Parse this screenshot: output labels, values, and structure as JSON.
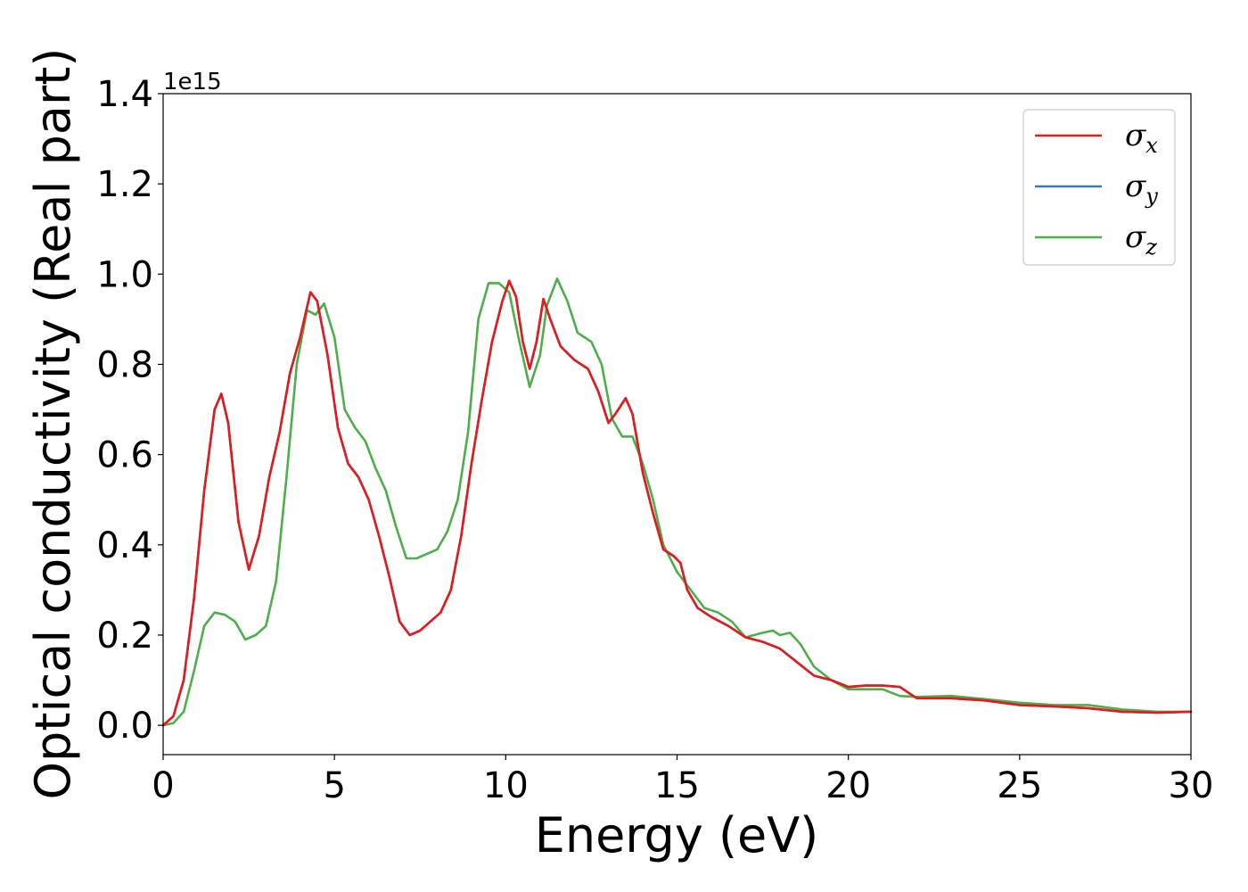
{
  "chart_data": {
    "type": "line",
    "title": "",
    "xlabel": "Energy (eV)",
    "ylabel": "Optical conductivity (Real part)",
    "y_offset_label": "1e15",
    "xlim": [
      0,
      30
    ],
    "ylim": [
      -0.065,
      1.4
    ],
    "x_ticks": [
      0,
      5,
      10,
      15,
      20,
      25,
      30
    ],
    "x_tick_labels": [
      "0",
      "5",
      "10",
      "15",
      "20",
      "25",
      "30"
    ],
    "y_ticks": [
      0.0,
      0.2,
      0.4,
      0.6,
      0.8,
      1.0,
      1.2,
      1.4
    ],
    "y_tick_labels": [
      "0.0",
      "0.2",
      "0.4",
      "0.6",
      "0.8",
      "1.0",
      "1.2",
      "1.4"
    ],
    "grid": false,
    "legend_position": "top-right",
    "series": [
      {
        "name": "σx",
        "sym": "σ",
        "sub": "x",
        "color": "#e41a1c",
        "x": [
          0,
          0.3,
          0.6,
          0.9,
          1.2,
          1.5,
          1.7,
          1.9,
          2.2,
          2.5,
          2.8,
          3.1,
          3.4,
          3.7,
          4.0,
          4.3,
          4.5,
          4.8,
          5.1,
          5.4,
          5.7,
          6.0,
          6.3,
          6.6,
          6.9,
          7.2,
          7.5,
          7.8,
          8.1,
          8.4,
          8.7,
          9.0,
          9.3,
          9.6,
          9.9,
          10.1,
          10.3,
          10.5,
          10.7,
          10.9,
          11.1,
          11.3,
          11.6,
          12.0,
          12.4,
          12.7,
          13.0,
          13.2,
          13.5,
          13.7,
          14.0,
          14.3,
          14.6,
          14.9,
          15.1,
          15.3,
          15.6,
          16.0,
          16.5,
          17.0,
          17.5,
          18.0,
          18.5,
          19.0,
          19.5,
          20.0,
          20.5,
          21.0,
          21.5,
          22.0,
          23.0,
          24.0,
          25.0,
          26.0,
          27.0,
          28.0,
          29.0,
          30.0
        ],
        "values": [
          0.0,
          0.02,
          0.1,
          0.28,
          0.52,
          0.7,
          0.735,
          0.67,
          0.45,
          0.345,
          0.42,
          0.55,
          0.65,
          0.78,
          0.86,
          0.96,
          0.94,
          0.82,
          0.66,
          0.58,
          0.55,
          0.5,
          0.42,
          0.33,
          0.23,
          0.2,
          0.21,
          0.23,
          0.25,
          0.3,
          0.42,
          0.58,
          0.72,
          0.85,
          0.94,
          0.985,
          0.95,
          0.85,
          0.79,
          0.85,
          0.945,
          0.9,
          0.84,
          0.81,
          0.79,
          0.74,
          0.67,
          0.69,
          0.725,
          0.69,
          0.56,
          0.47,
          0.39,
          0.375,
          0.36,
          0.3,
          0.26,
          0.24,
          0.22,
          0.195,
          0.185,
          0.17,
          0.14,
          0.11,
          0.1,
          0.085,
          0.088,
          0.088,
          0.085,
          0.06,
          0.06,
          0.055,
          0.045,
          0.042,
          0.038,
          0.03,
          0.028,
          0.03
        ]
      },
      {
        "name": "σy",
        "sym": "σ",
        "sub": "y",
        "color": "#377eb8",
        "x": [
          0,
          0.3,
          0.6,
          0.9,
          1.2,
          1.5,
          1.7,
          1.9,
          2.2,
          2.5,
          2.8,
          3.1,
          3.4,
          3.7,
          4.0,
          4.3,
          4.5,
          4.8,
          5.1,
          5.4,
          5.7,
          6.0,
          6.3,
          6.6,
          6.9,
          7.2,
          7.5,
          7.8,
          8.1,
          8.4,
          8.7,
          9.0,
          9.3,
          9.6,
          9.9,
          10.1,
          10.3,
          10.5,
          10.7,
          10.9,
          11.1,
          11.3,
          11.6,
          12.0,
          12.4,
          12.7,
          13.0,
          13.2,
          13.5,
          13.7,
          14.0,
          14.3,
          14.6,
          14.9,
          15.1,
          15.3,
          15.6,
          16.0,
          16.5,
          17.0,
          17.5,
          18.0,
          18.5,
          19.0,
          19.5,
          20.0,
          20.5,
          21.0,
          21.5,
          22.0,
          23.0,
          24.0,
          25.0,
          26.0,
          27.0,
          28.0,
          29.0,
          30.0
        ],
        "values": [
          0.0,
          0.02,
          0.1,
          0.28,
          0.52,
          0.7,
          0.735,
          0.67,
          0.45,
          0.345,
          0.42,
          0.55,
          0.65,
          0.78,
          0.86,
          0.96,
          0.94,
          0.82,
          0.66,
          0.58,
          0.55,
          0.5,
          0.42,
          0.33,
          0.23,
          0.2,
          0.21,
          0.23,
          0.25,
          0.3,
          0.42,
          0.58,
          0.72,
          0.85,
          0.94,
          0.985,
          0.95,
          0.85,
          0.79,
          0.85,
          0.945,
          0.9,
          0.84,
          0.81,
          0.79,
          0.74,
          0.67,
          0.69,
          0.725,
          0.69,
          0.56,
          0.47,
          0.39,
          0.375,
          0.36,
          0.3,
          0.26,
          0.24,
          0.22,
          0.195,
          0.185,
          0.17,
          0.14,
          0.11,
          0.1,
          0.085,
          0.088,
          0.088,
          0.085,
          0.06,
          0.06,
          0.055,
          0.045,
          0.042,
          0.038,
          0.03,
          0.028,
          0.03
        ]
      },
      {
        "name": "σz",
        "sym": "σ",
        "sub": "z",
        "color": "#4daf4a",
        "x": [
          0,
          0.3,
          0.6,
          0.9,
          1.2,
          1.5,
          1.8,
          2.1,
          2.4,
          2.7,
          3.0,
          3.3,
          3.6,
          3.9,
          4.2,
          4.45,
          4.7,
          5.0,
          5.3,
          5.6,
          5.9,
          6.2,
          6.5,
          6.8,
          7.1,
          7.4,
          7.7,
          8.0,
          8.3,
          8.6,
          8.9,
          9.2,
          9.5,
          9.8,
          10.1,
          10.4,
          10.7,
          11.0,
          11.2,
          11.5,
          11.8,
          12.1,
          12.5,
          12.8,
          13.1,
          13.4,
          13.7,
          14.0,
          14.3,
          14.6,
          15.0,
          15.4,
          15.8,
          16.2,
          16.6,
          17.0,
          17.5,
          17.8,
          18.0,
          18.3,
          18.6,
          19.0,
          19.5,
          20.0,
          20.5,
          21.0,
          21.5,
          22.0,
          23.0,
          24.0,
          25.0,
          26.0,
          27.0,
          28.0,
          29.0,
          30.0
        ],
        "values": [
          0.0,
          0.005,
          0.03,
          0.12,
          0.22,
          0.25,
          0.245,
          0.23,
          0.19,
          0.2,
          0.22,
          0.32,
          0.55,
          0.8,
          0.92,
          0.91,
          0.935,
          0.86,
          0.7,
          0.66,
          0.63,
          0.57,
          0.52,
          0.44,
          0.37,
          0.37,
          0.38,
          0.39,
          0.43,
          0.5,
          0.65,
          0.9,
          0.98,
          0.98,
          0.96,
          0.85,
          0.75,
          0.82,
          0.93,
          0.99,
          0.94,
          0.87,
          0.85,
          0.8,
          0.68,
          0.64,
          0.64,
          0.58,
          0.5,
          0.4,
          0.34,
          0.3,
          0.26,
          0.25,
          0.23,
          0.195,
          0.205,
          0.21,
          0.2,
          0.205,
          0.18,
          0.13,
          0.1,
          0.08,
          0.08,
          0.08,
          0.065,
          0.063,
          0.065,
          0.058,
          0.05,
          0.045,
          0.045,
          0.035,
          0.03,
          0.03
        ]
      }
    ]
  }
}
